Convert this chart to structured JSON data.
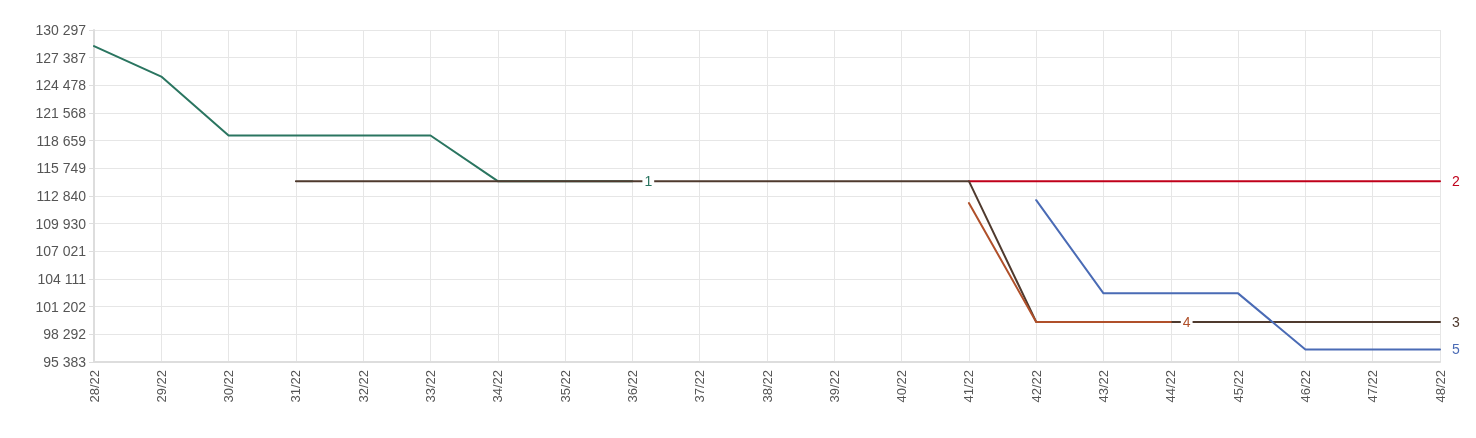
{
  "chart_data": {
    "type": "line",
    "categories": [
      "28/22",
      "29/22",
      "30/22",
      "31/22",
      "32/22",
      "33/22",
      "34/22",
      "35/22",
      "36/22",
      "37/22",
      "38/22",
      "39/22",
      "40/22",
      "41/22",
      "42/22",
      "43/22",
      "44/22",
      "45/22",
      "46/22",
      "47/22",
      "48/22"
    ],
    "series": [
      {
        "name": "1",
        "color": "#2a7560",
        "values": [
          128600,
          125400,
          119200,
          119200,
          119200,
          119200,
          114400,
          114400,
          114400,
          null,
          null,
          null,
          null,
          null,
          null,
          null,
          null,
          null,
          null,
          null,
          null
        ]
      },
      {
        "name": "2",
        "color": "#c0001a",
        "values": [
          null,
          null,
          null,
          null,
          null,
          null,
          null,
          null,
          null,
          null,
          null,
          null,
          null,
          114400,
          114400,
          114400,
          114400,
          114400,
          114400,
          114400,
          114400
        ]
      },
      {
        "name": "3",
        "color": "#4f3a2e",
        "values": [
          null,
          null,
          null,
          114400,
          114400,
          114400,
          114400,
          114400,
          114400,
          114400,
          114400,
          114400,
          114400,
          114400,
          99600,
          99600,
          99600,
          99600,
          99600,
          99600,
          99600
        ]
      },
      {
        "name": "4",
        "color": "#b0502a",
        "values": [
          null,
          null,
          null,
          null,
          null,
          null,
          null,
          null,
          null,
          null,
          null,
          null,
          null,
          112100,
          99600,
          99600,
          99600,
          null,
          null,
          null,
          null
        ]
      },
      {
        "name": "5",
        "color": "#4a6bb5",
        "values": [
          null,
          null,
          null,
          null,
          null,
          null,
          null,
          null,
          null,
          null,
          null,
          null,
          null,
          null,
          112400,
          102600,
          102600,
          102600,
          96700,
          96700,
          96700
        ]
      }
    ],
    "ylim": [
      95383,
      130297
    ],
    "yticks": [
      {
        "value": 95383,
        "label": "95 383"
      },
      {
        "value": 98292,
        "label": "98 292"
      },
      {
        "value": 101202,
        "label": "101 202"
      },
      {
        "value": 104111,
        "label": "104 111"
      },
      {
        "value": 107021,
        "label": "107 021"
      },
      {
        "value": 109930,
        "label": "109 930"
      },
      {
        "value": 112840,
        "label": "112 840"
      },
      {
        "value": 115749,
        "label": "115 749"
      },
      {
        "value": 118659,
        "label": "118 659"
      },
      {
        "value": 121568,
        "label": "121 568"
      },
      {
        "value": 124478,
        "label": "124 478"
      },
      {
        "value": 127387,
        "label": "127 387"
      },
      {
        "value": 130297,
        "label": "130 297"
      }
    ],
    "grid": true,
    "marker": "none",
    "line_style": "solid",
    "legend": false
  }
}
